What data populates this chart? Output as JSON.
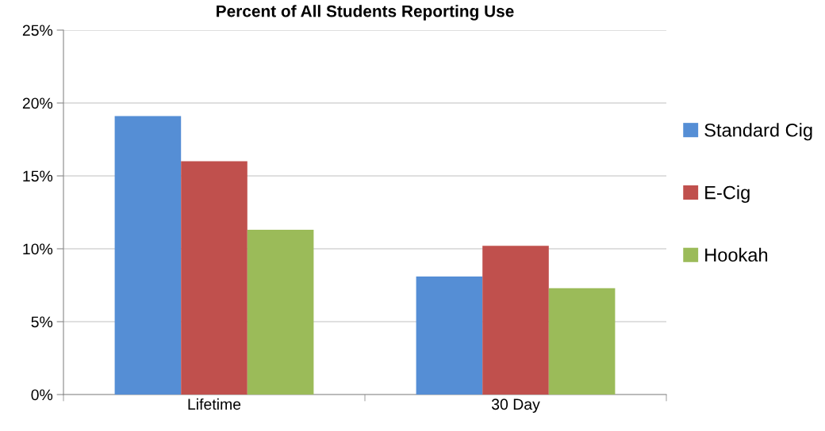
{
  "chart_data": {
    "type": "bar",
    "title": "Percent of All Students Reporting Use",
    "categories": [
      "Lifetime",
      "30 Day"
    ],
    "series": [
      {
        "name": "Standard Cig",
        "color": "#558ed5",
        "values": [
          19.1,
          8.1
        ]
      },
      {
        "name": "E-Cig",
        "color": "#c0504d",
        "values": [
          16.0,
          10.2
        ]
      },
      {
        "name": "Hookah",
        "color": "#9bbb59",
        "values": [
          11.3,
          7.3
        ]
      }
    ],
    "ylim": [
      0,
      25
    ],
    "yticks": [
      {
        "value": 0,
        "label": "0%"
      },
      {
        "value": 5,
        "label": "5%"
      },
      {
        "value": 10,
        "label": "10%"
      },
      {
        "value": 15,
        "label": "15%"
      },
      {
        "value": 20,
        "label": "20%"
      },
      {
        "value": 25,
        "label": "25%"
      }
    ],
    "grid": "y",
    "legend": "right"
  }
}
